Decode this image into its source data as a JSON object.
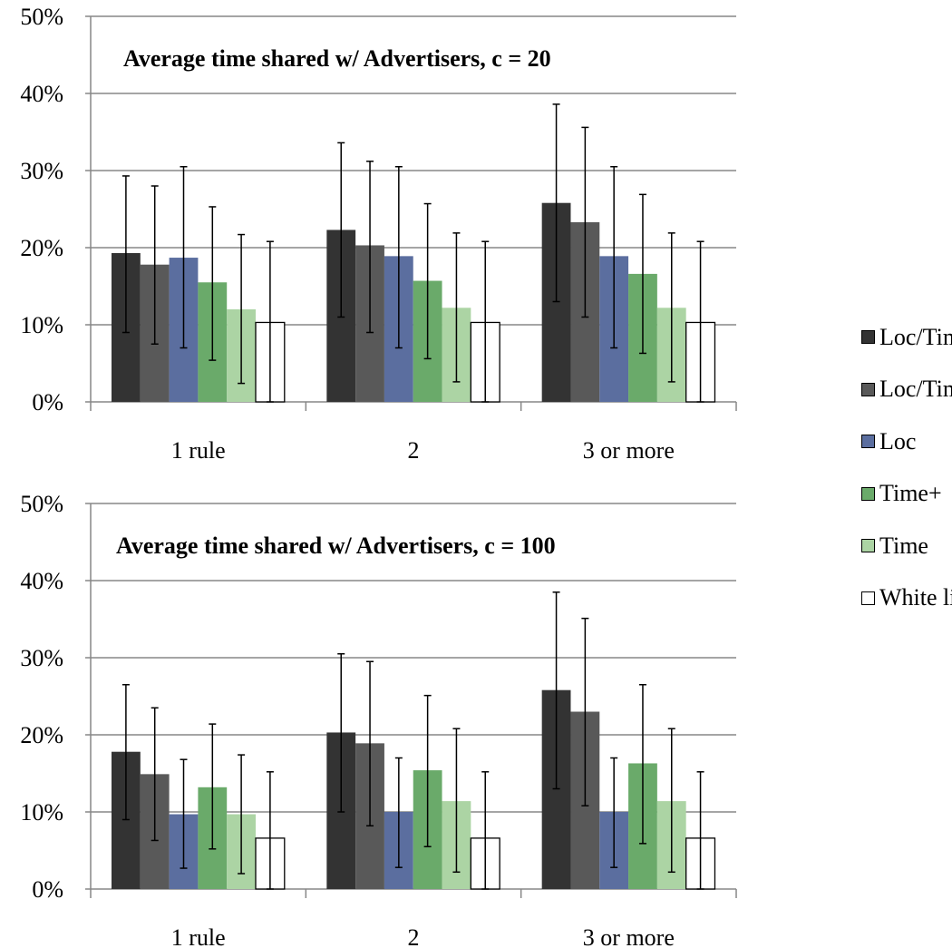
{
  "chart_data": [
    {
      "type": "bar",
      "title": "Average time shared w/ Advertisers, c = 20",
      "categories": [
        "1 rule",
        "2",
        "3 or more"
      ],
      "yticks": [
        "0%",
        "10%",
        "20%",
        "30%",
        "40%",
        "50%"
      ],
      "ylim": [
        0,
        50
      ],
      "grid": true,
      "series": [
        {
          "name": "Loc/Time+",
          "values": [
            19.3,
            22.3,
            25.8
          ],
          "error_low": [
            9.0,
            11.0,
            13.0
          ],
          "error_high": [
            29.3,
            33.6,
            38.6
          ]
        },
        {
          "name": "Loc/Time",
          "values": [
            17.8,
            20.3,
            23.3
          ],
          "error_low": [
            7.5,
            9.0,
            11.0
          ],
          "error_high": [
            28.0,
            31.2,
            35.6
          ]
        },
        {
          "name": "Loc",
          "values": [
            18.7,
            18.9,
            18.9
          ],
          "error_low": [
            7.0,
            7.0,
            7.0
          ],
          "error_high": [
            30.5,
            30.5,
            30.5
          ]
        },
        {
          "name": "Time+",
          "values": [
            15.5,
            15.7,
            16.6
          ],
          "error_low": [
            5.4,
            5.6,
            6.3
          ],
          "error_high": [
            25.3,
            25.7,
            26.9
          ]
        },
        {
          "name": "Time",
          "values": [
            12.0,
            12.2,
            12.2
          ],
          "error_low": [
            2.4,
            2.6,
            2.6
          ],
          "error_high": [
            21.7,
            21.9,
            21.9
          ]
        },
        {
          "name": "White list",
          "values": [
            10.3,
            10.3,
            10.3
          ],
          "error_low": [
            0,
            0,
            0
          ],
          "error_high": [
            20.8,
            20.8,
            20.8
          ]
        }
      ]
    },
    {
      "type": "bar",
      "title": "Average time shared w/ Advertisers, c = 100",
      "categories": [
        "1 rule",
        "2",
        "3 or more"
      ],
      "yticks": [
        "0%",
        "10%",
        "20%",
        "30%",
        "40%",
        "50%"
      ],
      "ylim": [
        0,
        50
      ],
      "grid": true,
      "series": [
        {
          "name": "Loc/Time+",
          "values": [
            17.8,
            20.3,
            25.8
          ],
          "error_low": [
            9.0,
            10.0,
            13.0
          ],
          "error_high": [
            26.5,
            30.5,
            38.5
          ]
        },
        {
          "name": "Loc/Time",
          "values": [
            14.9,
            18.9,
            23.0
          ],
          "error_low": [
            6.3,
            8.2,
            10.8
          ],
          "error_high": [
            23.5,
            29.5,
            35.1
          ]
        },
        {
          "name": "Loc",
          "values": [
            9.7,
            10.0,
            10.0
          ],
          "error_low": [
            2.7,
            2.8,
            2.8
          ],
          "error_high": [
            16.8,
            17.0,
            17.0
          ]
        },
        {
          "name": "Time+",
          "values": [
            13.2,
            15.4,
            16.3
          ],
          "error_low": [
            5.2,
            5.5,
            5.9
          ],
          "error_high": [
            21.4,
            25.1,
            26.5
          ]
        },
        {
          "name": "Time",
          "values": [
            9.7,
            11.4,
            11.4
          ],
          "error_low": [
            2.0,
            2.2,
            2.2
          ],
          "error_high": [
            17.4,
            20.8,
            20.8
          ]
        },
        {
          "name": "White list",
          "values": [
            6.6,
            6.6,
            6.6
          ],
          "error_low": [
            0,
            0,
            0
          ],
          "error_high": [
            15.2,
            15.2,
            15.2
          ]
        }
      ]
    }
  ],
  "legend": {
    "placement": "right",
    "items": [
      {
        "label": "Loc/Time+",
        "color": "#333333"
      },
      {
        "label": "Loc/Time",
        "color": "#595959"
      },
      {
        "label": "Loc",
        "color": "#5b6e9f"
      },
      {
        "label": "Time+",
        "color": "#6aaa6a"
      },
      {
        "label": "Time",
        "color": "#acd4a4"
      },
      {
        "label": "White list",
        "color": "#ffffff"
      }
    ]
  }
}
